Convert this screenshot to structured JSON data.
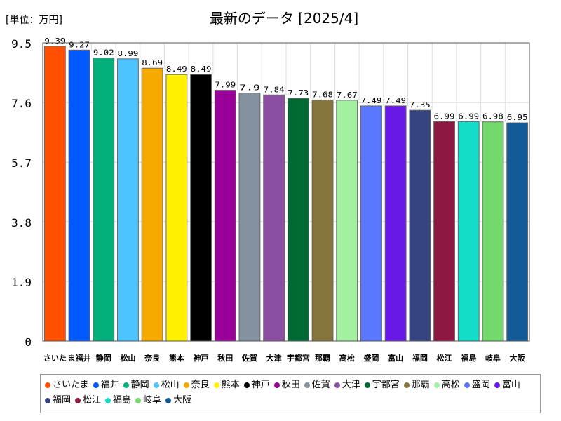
{
  "chart_data": {
    "type": "bar",
    "title": "最新のデータ [2025/4]",
    "unit_label": "[単位：万円]",
    "ylim": [
      0,
      9.5
    ],
    "yticks": [
      "0",
      "1.9",
      "3.8",
      "5.7",
      "7.6",
      "9.5"
    ],
    "grid": true,
    "legend_position": "bottom",
    "categories": [
      "さいたま",
      "福井",
      "静岡",
      "松山",
      "奈良",
      "熊本",
      "神戸",
      "秋田",
      "佐賀",
      "大津",
      "宇都宮",
      "那覇",
      "高松",
      "盛岡",
      "富山",
      "福岡",
      "松江",
      "福島",
      "岐阜",
      "大阪"
    ],
    "tick_labels": [
      "さいた",
      "ま福井",
      "静岡",
      "松山",
      "奈良",
      "熊本",
      "神戸",
      "秋田",
      "佐賀",
      "大津",
      "宇都宮",
      "那覇",
      "高松",
      "盛岡",
      "富山",
      "福岡",
      "松江",
      "福島",
      "岐阜",
      "大阪"
    ],
    "values": [
      9.39,
      9.27,
      9.02,
      8.99,
      8.69,
      8.49,
      8.49,
      7.99,
      7.9,
      7.84,
      7.73,
      7.68,
      7.67,
      7.49,
      7.49,
      7.35,
      6.99,
      6.99,
      6.98,
      6.95
    ],
    "value_labels": [
      "9.39",
      "9.27",
      "9.02",
      "8.99",
      "8.69",
      "8.49",
      "8.49",
      "7.99",
      "7.9",
      "7.84",
      "7.73",
      "7.68",
      "7.67",
      "7.49",
      "7.49",
      "7.35",
      "6.99",
      "6.99",
      "6.98",
      "6.95"
    ],
    "colors": [
      "#ff4f00",
      "#005aff",
      "#03af7a",
      "#4dc4ff",
      "#f6aa00",
      "#fff100",
      "#000000",
      "#990099",
      "#84919e",
      "#8b4ea1",
      "#006a35",
      "#85753c",
      "#a3f0a2",
      "#5a77ff",
      "#6a18e6",
      "#354380",
      "#8d1842",
      "#13dcc8",
      "#72d96c",
      "#135b96"
    ]
  }
}
